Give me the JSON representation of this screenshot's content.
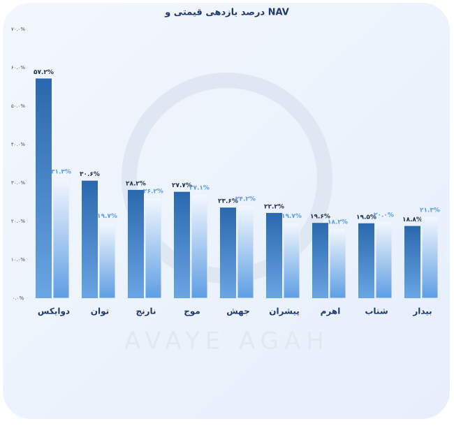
{
  "chart_data": {
    "type": "bar",
    "title": "درصد بازدهی قیمتی و NAV",
    "watermark": "AVAYE AGAH",
    "categories": [
      "دوایکس",
      "توان",
      "نارنج",
      "موج",
      "جهش",
      "پیشران",
      "اهرم",
      "شتاب",
      "بیدار"
    ],
    "series": [
      {
        "color": "#2b6cb3",
        "values": [
          57.2,
          30.6,
          28.2,
          27.7,
          23.6,
          22.2,
          19.6,
          19.5,
          18.8
        ],
        "value_labels": [
          "۵۷.۲%",
          "۳۰.۶%",
          "۲۸.۲%",
          "۲۷.۷%",
          "۲۳.۶%",
          "۲۲.۲%",
          "۱۹.۶%",
          "۱۹.۵%",
          "۱۸.۸%"
        ]
      },
      {
        "color": "#5d9ee3",
        "values": [
          31.3,
          19.7,
          26.2,
          27.1,
          24.2,
          19.7,
          18.2,
          20.0,
          21.3
        ],
        "value_labels": [
          "۳۱.۳%",
          "۱۹.۷%",
          "۲۶.۲%",
          "۲۷.۱%",
          "۲۴.۲%",
          "۱۹.۷%",
          "۱۸.۲%",
          "۲۰.۰%",
          "۲۱.۳%"
        ]
      }
    ],
    "ylim": [
      0,
      70
    ],
    "yticks": [
      {
        "value": 0,
        "label": "۰.۰%"
      },
      {
        "value": 10,
        "label": "۱۰.۰%"
      },
      {
        "value": 20,
        "label": "۲۰.۰%"
      },
      {
        "value": 30,
        "label": "۳۰.۰%"
      },
      {
        "value": 40,
        "label": "۴۰.۰%"
      },
      {
        "value": 50,
        "label": "۵۰.۰%"
      },
      {
        "value": 60,
        "label": "۶۰.۰%"
      },
      {
        "value": 70,
        "label": "۷۰.۰%"
      }
    ]
  }
}
